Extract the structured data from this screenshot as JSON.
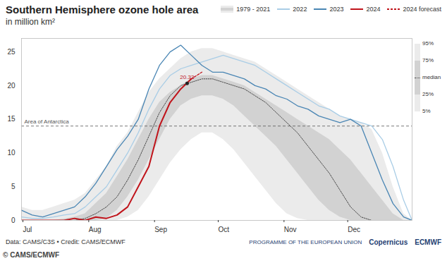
{
  "chart_data": {
    "type": "line",
    "title": "Southern Hemisphere ozone hole area",
    "subtitle": "in million km²",
    "x": [
      0,
      5,
      10,
      15,
      20,
      25,
      30,
      35,
      40,
      45,
      50,
      55,
      60,
      65,
      70,
      75,
      80,
      85,
      90,
      95,
      100,
      105,
      110,
      115,
      120,
      125,
      130,
      135,
      140,
      145,
      150,
      155,
      160,
      165,
      170,
      175,
      180,
      184
    ],
    "xlim": [
      0,
      184
    ],
    "xticks": [
      {
        "value": 0,
        "label": "Jul"
      },
      {
        "value": 31,
        "label": "Aug"
      },
      {
        "value": 62,
        "label": "Sep"
      },
      {
        "value": 92,
        "label": "Oct"
      },
      {
        "value": 123,
        "label": "Nov"
      },
      {
        "value": 153,
        "label": "Dec"
      }
    ],
    "ylim": [
      0,
      27
    ],
    "yticks": [
      0,
      5,
      10,
      15,
      20,
      25
    ],
    "grid": false,
    "legend": "top right",
    "band": {
      "name": "1979 - 2021",
      "colors": [
        "#ebebeb",
        "#d2d2d2"
      ],
      "percentile_labels": [
        "95%",
        "75%",
        "median",
        "25%",
        "5%"
      ],
      "p95": [
        2.0,
        1.5,
        1.5,
        2.0,
        2.5,
        3.0,
        4.0,
        6.0,
        8.0,
        11.0,
        13.0,
        16.0,
        19.0,
        21.0,
        22.5,
        24.0,
        25.0,
        25.5,
        25.5,
        25.0,
        24.5,
        24.0,
        23.5,
        22.5,
        21.5,
        20.5,
        19.5,
        18.5,
        17.5,
        16.5,
        15.5,
        15.0,
        14.5,
        13.5,
        10.0,
        5.0,
        1.0,
        0
      ],
      "p75": [
        0,
        0,
        0,
        0,
        0.2,
        0.5,
        1.0,
        2.5,
        4.0,
        6.5,
        9.0,
        12.0,
        15.0,
        17.5,
        19.0,
        20.0,
        21.0,
        21.5,
        21.5,
        21.0,
        20.5,
        20.0,
        19.0,
        18.0,
        17.0,
        16.0,
        15.0,
        14.0,
        13.0,
        12.0,
        10.5,
        9.0,
        7.0,
        5.0,
        3.0,
        1.0,
        0,
        0
      ],
      "median": [
        0,
        0,
        0,
        0,
        0,
        0,
        0.3,
        1.0,
        2.0,
        3.5,
        6.0,
        9.0,
        12.5,
        16.0,
        18.5,
        20.0,
        20.5,
        21.0,
        21.0,
        20.5,
        20.0,
        19.5,
        18.5,
        17.5,
        16.0,
        14.5,
        13.0,
        11.0,
        9.0,
        7.0,
        4.5,
        2.0,
        0.5,
        0,
        0,
        0,
        0,
        0
      ],
      "p25": [
        0,
        0,
        0,
        0,
        0,
        0,
        0,
        0,
        0.3,
        1.5,
        3.5,
        6.0,
        9.0,
        12.0,
        15.0,
        17.0,
        18.0,
        18.5,
        18.5,
        18.0,
        17.0,
        15.5,
        14.0,
        12.5,
        11.0,
        9.0,
        7.0,
        5.0,
        3.0,
        1.5,
        0.5,
        0,
        0,
        0,
        0,
        0,
        0,
        0
      ],
      "p5": [
        0,
        0,
        0,
        0,
        0,
        0,
        0,
        0,
        0,
        0,
        0.5,
        1.5,
        3.5,
        6.0,
        8.5,
        10.5,
        12.0,
        13.0,
        13.0,
        12.0,
        10.5,
        8.5,
        6.5,
        4.5,
        2.5,
        1.0,
        0.3,
        0,
        0,
        0,
        0,
        0,
        0,
        0,
        0,
        0,
        0,
        0
      ]
    },
    "series": [
      {
        "name": "2022",
        "color": "#a9cde6",
        "line_style": "solid",
        "values": [
          0.5,
          0.3,
          0.3,
          0.5,
          0.8,
          1.0,
          2.0,
          3.5,
          5.0,
          7.5,
          10.0,
          13.0,
          16.5,
          19.5,
          21.5,
          22.5,
          23.0,
          23.5,
          24.0,
          24.5,
          24.0,
          23.5,
          23.0,
          22.0,
          21.0,
          20.0,
          19.0,
          18.0,
          17.0,
          16.5,
          15.5,
          15.0,
          14.5,
          14.0,
          12.0,
          8.0,
          3.0,
          0
        ]
      },
      {
        "name": "2023",
        "color": "#4a86b4",
        "line_style": "solid",
        "values": [
          1.5,
          0.8,
          0.5,
          1.0,
          1.5,
          2.0,
          3.5,
          5.5,
          8.0,
          10.5,
          12.5,
          15.0,
          19.5,
          23.0,
          25.0,
          26.0,
          24.5,
          23.0,
          22.0,
          22.0,
          21.5,
          21.0,
          20.0,
          19.5,
          18.5,
          18.0,
          17.0,
          16.5,
          15.5,
          15.0,
          14.5,
          15.0,
          14.0,
          10.0,
          6.0,
          2.5,
          0.5,
          0
        ]
      },
      {
        "name": "2024",
        "color": "#c0141b",
        "line_style": "solid",
        "values": [
          0,
          0,
          0,
          0,
          0,
          0.3,
          0,
          0.5,
          0.3,
          0.8,
          2.0,
          5.0,
          8.0,
          14.0,
          17.5,
          19.5,
          21.0,
          null,
          null,
          null,
          null,
          null,
          null,
          null,
          null,
          null,
          null,
          null,
          null,
          null,
          null,
          null,
          null,
          null,
          null,
          null,
          null,
          null
        ]
      },
      {
        "name": "2024 forecast",
        "color": "#c0141b",
        "line_style": "dashed",
        "values": [
          null,
          null,
          null,
          null,
          null,
          null,
          null,
          null,
          null,
          null,
          null,
          null,
          null,
          null,
          null,
          null,
          21.0,
          22.0,
          null,
          null,
          null,
          null,
          null,
          null,
          null,
          null,
          null,
          null,
          null,
          null,
          null,
          null,
          null,
          null,
          null,
          null,
          null,
          null
        ]
      }
    ],
    "reference_line": {
      "value": 14,
      "label": "Area of Antarctica"
    },
    "annotations": [
      {
        "x": 78,
        "y": 20.33,
        "text": "20.33"
      }
    ],
    "source": "Data: CAMS/C3S • Credit: CAMS/ECMWF",
    "logos": [
      "PROGRAMME OF THE EUROPEAN UNION",
      "Copernicus",
      "ECMWF"
    ],
    "watermark": "© CAMS/ECMWF"
  }
}
